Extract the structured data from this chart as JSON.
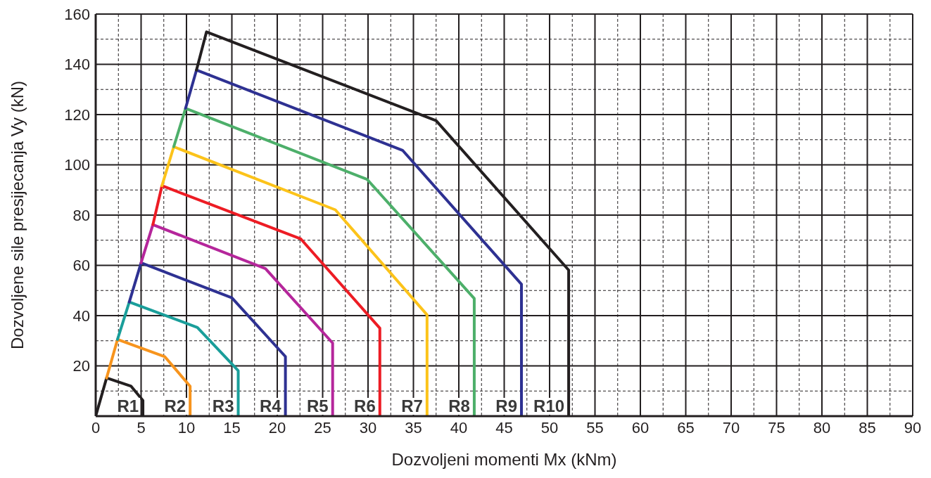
{
  "chart_data": {
    "type": "line",
    "xlabel": "Dozvoljeni momenti Mx (kNm)",
    "ylabel": "Dozvoljene sile presijecanja Vy (kN)",
    "xlim": [
      0,
      90
    ],
    "ylim": [
      0,
      160
    ],
    "xticks": [
      0,
      5,
      10,
      15,
      20,
      25,
      30,
      35,
      40,
      45,
      50,
      55,
      60,
      65,
      70,
      75,
      80,
      85,
      90
    ],
    "yticks": [
      20,
      40,
      60,
      80,
      100,
      120,
      140,
      160
    ],
    "grid": true,
    "marker": "none",
    "line_style": "solid",
    "series": [
      {
        "name": "R1",
        "color": "#231f20",
        "x": [
          0,
          1.2,
          3.9,
          5.2,
          5.2
        ],
        "values": [
          0,
          15.2,
          11.9,
          6.2,
          0
        ]
      },
      {
        "name": "R2",
        "color": "#f7941d",
        "x": [
          1.2,
          2.4,
          7.6,
          10.4,
          10.4
        ],
        "values": [
          15.2,
          30.5,
          23.7,
          11.9,
          0
        ]
      },
      {
        "name": "R3",
        "color": "#1a9e9a",
        "x": [
          2.4,
          3.7,
          11.2,
          15.7,
          15.7
        ],
        "values": [
          30.5,
          45.4,
          35.3,
          18.1,
          0
        ]
      },
      {
        "name": "R4",
        "color": "#2e3192",
        "x": [
          3.7,
          5.0,
          15.0,
          20.9,
          20.9
        ],
        "values": [
          45.4,
          61,
          47.1,
          23.7,
          0
        ]
      },
      {
        "name": "R5",
        "color": "#b5269b",
        "x": [
          5.0,
          6.3,
          18.7,
          26.1,
          26.1
        ],
        "values": [
          61,
          76.2,
          58.7,
          29.1,
          0
        ]
      },
      {
        "name": "R6",
        "color": "#ed1c24",
        "x": [
          6.3,
          7.3,
          22.6,
          31.3,
          31.3
        ],
        "values": [
          76.2,
          91.7,
          70.5,
          35,
          0
        ]
      },
      {
        "name": "R7",
        "color": "#fcc31a",
        "x": [
          7.3,
          8.6,
          26.4,
          36.5,
          36.5
        ],
        "values": [
          91.7,
          107.2,
          82.1,
          40.3,
          0
        ]
      },
      {
        "name": "R8",
        "color": "#4daf6a",
        "x": [
          8.6,
          9.9,
          29.9,
          41.7,
          41.7
        ],
        "values": [
          107.2,
          122.5,
          94.2,
          46.8,
          0
        ]
      },
      {
        "name": "R9",
        "color": "#2e3192",
        "x": [
          9.9,
          11.1,
          33.8,
          46.9,
          46.9
        ],
        "values": [
          122.5,
          137.7,
          105.8,
          52.5,
          0
        ]
      },
      {
        "name": "R10",
        "color": "#231f20",
        "x": [
          11.1,
          12.2,
          37.5,
          52.1,
          52.1
        ],
        "values": [
          137.7,
          152.9,
          117.6,
          58.1,
          0
        ]
      }
    ]
  }
}
